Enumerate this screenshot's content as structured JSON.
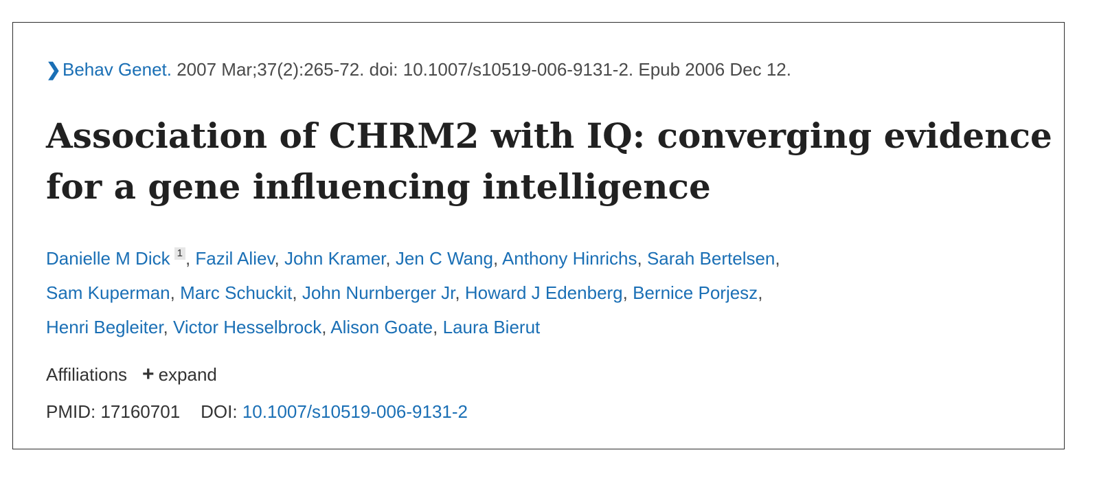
{
  "citation": {
    "chevron_icon": "chevron-right-icon",
    "journal": "Behav Genet.",
    "details": " 2007 Mar;37(2):265-72. doi: 10.1007/s10519-006-9131-2. Epub 2006 Dec 12."
  },
  "title": "Association of CHRM2 with IQ: converging evidence for a gene influencing intelligence",
  "authors": [
    "Danielle M Dick",
    "Fazil Aliev",
    "John Kramer",
    "Jen C Wang",
    "Anthony Hinrichs",
    "Sarah Bertelsen",
    "Sam Kuperman",
    "Marc Schuckit",
    "John Nurnberger Jr",
    "Howard J Edenberg",
    "Bernice Porjesz",
    "Henri Begleiter",
    "Victor Hesselbrock",
    "Alison Goate",
    "Laura Bierut"
  ],
  "first_author_affiliation_number": "1",
  "separator": ", ",
  "affiliations": {
    "label": "Affiliations",
    "expand_icon": "plus-icon",
    "expand_label": "expand"
  },
  "ids": {
    "pmid_label": "PMID:",
    "pmid": "17160701",
    "doi_label": "DOI:",
    "doi": "10.1007/s10519-006-9131-2"
  },
  "colors": {
    "link": "#1a6fb5",
    "text": "#212121",
    "border": "#2b2b2b"
  }
}
